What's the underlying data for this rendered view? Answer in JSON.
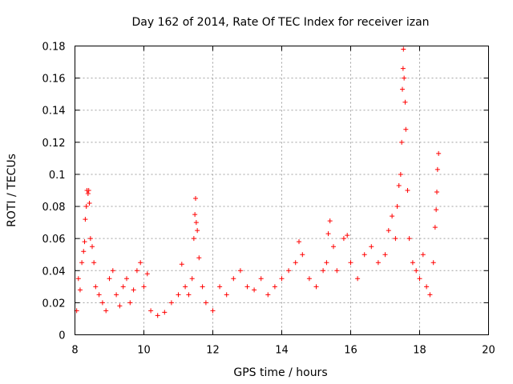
{
  "chart_data": {
    "type": "scatter",
    "title": "Day 162 of 2014, Rate Of TEC Index for receiver izan",
    "xlabel": "GPS time / hours",
    "ylabel": "ROTI / TECUs",
    "xlim": [
      8,
      20
    ],
    "ylim": [
      0,
      0.18
    ],
    "xticks": [
      "8",
      "10",
      "12",
      "14",
      "16",
      "18",
      "20"
    ],
    "yticks": [
      "0",
      "0.02",
      "0.04",
      "0.06",
      "0.08",
      "0.1",
      "0.12",
      "0.14",
      "0.16",
      "0.18"
    ],
    "grid": true,
    "marker": "+",
    "color": "#ff0000",
    "series": [
      {
        "name": "ROTI",
        "points": [
          [
            8.05,
            0.015
          ],
          [
            8.1,
            0.035
          ],
          [
            8.15,
            0.028
          ],
          [
            8.2,
            0.045
          ],
          [
            8.25,
            0.052
          ],
          [
            8.28,
            0.058
          ],
          [
            8.3,
            0.072
          ],
          [
            8.33,
            0.08
          ],
          [
            8.35,
            0.09
          ],
          [
            8.38,
            0.088
          ],
          [
            8.4,
            0.09
          ],
          [
            8.42,
            0.082
          ],
          [
            8.45,
            0.06
          ],
          [
            8.5,
            0.055
          ],
          [
            8.55,
            0.045
          ],
          [
            8.6,
            0.03
          ],
          [
            8.7,
            0.025
          ],
          [
            8.8,
            0.02
          ],
          [
            8.9,
            0.015
          ],
          [
            9.0,
            0.035
          ],
          [
            9.1,
            0.04
          ],
          [
            9.2,
            0.025
          ],
          [
            9.3,
            0.018
          ],
          [
            9.4,
            0.03
          ],
          [
            9.5,
            0.035
          ],
          [
            9.6,
            0.02
          ],
          [
            9.7,
            0.028
          ],
          [
            9.8,
            0.04
          ],
          [
            9.9,
            0.045
          ],
          [
            10.0,
            0.03
          ],
          [
            10.1,
            0.038
          ],
          [
            10.2,
            0.015
          ],
          [
            10.4,
            0.012
          ],
          [
            10.6,
            0.014
          ],
          [
            10.8,
            0.02
          ],
          [
            11.0,
            0.025
          ],
          [
            11.1,
            0.044
          ],
          [
            11.2,
            0.03
          ],
          [
            11.3,
            0.025
          ],
          [
            11.4,
            0.035
          ],
          [
            11.45,
            0.06
          ],
          [
            11.48,
            0.075
          ],
          [
            11.5,
            0.085
          ],
          [
            11.52,
            0.07
          ],
          [
            11.55,
            0.065
          ],
          [
            11.6,
            0.048
          ],
          [
            11.7,
            0.03
          ],
          [
            11.8,
            0.02
          ],
          [
            12.0,
            0.015
          ],
          [
            12.2,
            0.03
          ],
          [
            12.4,
            0.025
          ],
          [
            12.6,
            0.035
          ],
          [
            12.8,
            0.04
          ],
          [
            13.0,
            0.03
          ],
          [
            13.2,
            0.028
          ],
          [
            13.4,
            0.035
          ],
          [
            13.6,
            0.025
          ],
          [
            13.8,
            0.03
          ],
          [
            14.0,
            0.035
          ],
          [
            14.2,
            0.04
          ],
          [
            14.4,
            0.045
          ],
          [
            14.5,
            0.058
          ],
          [
            14.6,
            0.05
          ],
          [
            14.8,
            0.035
          ],
          [
            15.0,
            0.03
          ],
          [
            15.2,
            0.04
          ],
          [
            15.3,
            0.045
          ],
          [
            15.35,
            0.063
          ],
          [
            15.4,
            0.071
          ],
          [
            15.5,
            0.055
          ],
          [
            15.6,
            0.04
          ],
          [
            15.8,
            0.06
          ],
          [
            15.9,
            0.062
          ],
          [
            16.0,
            0.045
          ],
          [
            16.2,
            0.035
          ],
          [
            16.4,
            0.05
          ],
          [
            16.6,
            0.055
          ],
          [
            16.8,
            0.045
          ],
          [
            17.0,
            0.05
          ],
          [
            17.1,
            0.065
          ],
          [
            17.2,
            0.074
          ],
          [
            17.3,
            0.06
          ],
          [
            17.35,
            0.08
          ],
          [
            17.4,
            0.093
          ],
          [
            17.45,
            0.1
          ],
          [
            17.48,
            0.12
          ],
          [
            17.5,
            0.153
          ],
          [
            17.52,
            0.166
          ],
          [
            17.53,
            0.178
          ],
          [
            17.55,
            0.16
          ],
          [
            17.58,
            0.145
          ],
          [
            17.6,
            0.128
          ],
          [
            17.65,
            0.09
          ],
          [
            17.7,
            0.06
          ],
          [
            17.8,
            0.045
          ],
          [
            17.9,
            0.04
          ],
          [
            18.0,
            0.035
          ],
          [
            18.1,
            0.05
          ],
          [
            18.2,
            0.03
          ],
          [
            18.3,
            0.025
          ],
          [
            18.4,
            0.045
          ],
          [
            18.45,
            0.067
          ],
          [
            18.48,
            0.078
          ],
          [
            18.5,
            0.089
          ],
          [
            18.52,
            0.103
          ],
          [
            18.55,
            0.113
          ]
        ]
      }
    ]
  }
}
